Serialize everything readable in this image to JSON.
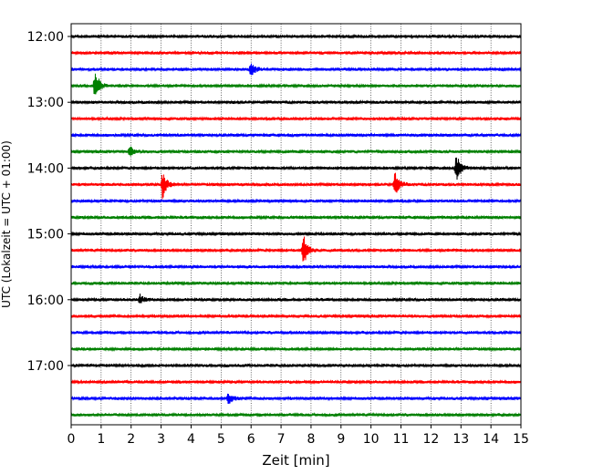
{
  "chart_data": {
    "type": "line",
    "title": "",
    "xlabel": "Zeit  [min]",
    "ylabel": "UTC (Lokalzeit = UTC + 01:00)",
    "xlim": [
      0,
      15
    ],
    "x_ticks": [
      "0",
      "1",
      "2",
      "3",
      "4",
      "5",
      "6",
      "7",
      "8",
      "9",
      "10",
      "11",
      "12",
      "13",
      "14",
      "15"
    ],
    "y_ticks": [
      "12:00",
      "13:00",
      "14:00",
      "15:00",
      "16:00",
      "17:00"
    ],
    "grid_x": "dotted vertical lines at each minute",
    "trace_interval_minutes": 15,
    "start_time": "12:00",
    "trace_count": 24,
    "colors": [
      "#000000",
      "#ff0000",
      "#0000ff",
      "#008000"
    ],
    "events": [
      {
        "trace": 2,
        "minute": 6.0,
        "amplitude": 0.5
      },
      {
        "trace": 3,
        "minute": 0.8,
        "amplitude": 1.2
      },
      {
        "trace": 7,
        "minute": 1.95,
        "amplitude": 0.4
      },
      {
        "trace": 8,
        "minute": 12.85,
        "amplitude": 1.1
      },
      {
        "trace": 9,
        "minute": 3.05,
        "amplitude": 1.0
      },
      {
        "trace": 9,
        "minute": 10.8,
        "amplitude": 0.9
      },
      {
        "trace": 13,
        "minute": 7.75,
        "amplitude": 1.2
      },
      {
        "trace": 16,
        "minute": 2.3,
        "amplitude": 0.35
      },
      {
        "trace": 22,
        "minute": 5.25,
        "amplitude": 0.4
      }
    ]
  }
}
